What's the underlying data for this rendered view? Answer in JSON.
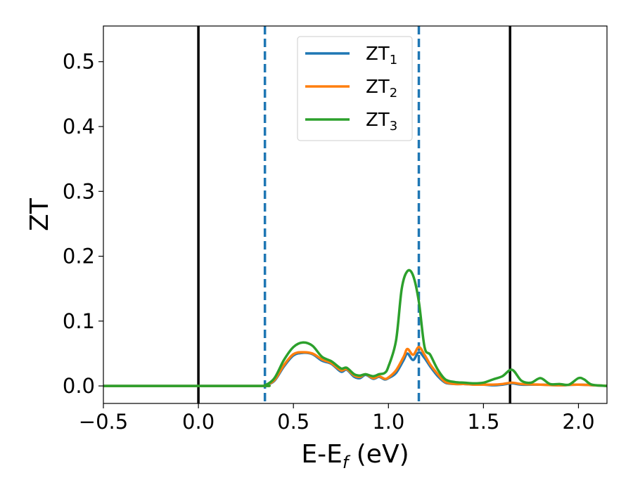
{
  "chart_data": {
    "type": "line",
    "xlabel": "E-E",
    "xlabel_sub": "f",
    "xlabel_unit": " (eV)",
    "ylabel": "ZT",
    "xlim": [
      -0.5,
      2.15
    ],
    "ylim": [
      -0.027,
      0.555
    ],
    "xticks": [
      -0.5,
      0.0,
      0.5,
      1.0,
      1.5,
      2.0
    ],
    "xtick_labels": [
      "−0.5",
      "0.0",
      "0.5",
      "1.0",
      "1.5",
      "2.0"
    ],
    "yticks": [
      0.0,
      0.1,
      0.2,
      0.3,
      0.4,
      0.5
    ],
    "ytick_labels": [
      "0.0",
      "0.1",
      "0.2",
      "0.3",
      "0.4",
      "0.5"
    ],
    "grid": false,
    "legend_position": "top-center",
    "vlines_solid": [
      0.0,
      1.64
    ],
    "vlines_dashed": [
      0.35,
      1.16
    ],
    "vline_solid_color": "#000000",
    "vline_dashed_color": "#1f77b4",
    "series": [
      {
        "name": "ZT",
        "sub": "1",
        "color": "#1f77b4",
        "x": [
          -0.5,
          0.3,
          0.35,
          0.4,
          0.45,
          0.5,
          0.55,
          0.6,
          0.65,
          0.7,
          0.75,
          0.78,
          0.82,
          0.85,
          0.88,
          0.92,
          0.95,
          0.98,
          1.0,
          1.04,
          1.08,
          1.1,
          1.13,
          1.16,
          1.19,
          1.22,
          1.26,
          1.3,
          1.35,
          1.4,
          1.45,
          1.5,
          1.55,
          1.6,
          1.65,
          1.7,
          1.8,
          1.9,
          2.0,
          2.15
        ],
        "y": [
          0.0,
          0.0,
          0.001,
          0.008,
          0.03,
          0.047,
          0.051,
          0.049,
          0.039,
          0.034,
          0.022,
          0.025,
          0.014,
          0.012,
          0.017,
          0.011,
          0.014,
          0.01,
          0.012,
          0.02,
          0.04,
          0.05,
          0.04,
          0.052,
          0.043,
          0.03,
          0.015,
          0.005,
          0.003,
          0.003,
          0.002,
          0.002,
          0.001,
          0.002,
          0.004,
          0.002,
          0.002,
          0.001,
          0.002,
          0.0
        ]
      },
      {
        "name": "ZT",
        "sub": "2",
        "color": "#ff7f0e",
        "x": [
          -0.5,
          0.3,
          0.35,
          0.4,
          0.45,
          0.5,
          0.55,
          0.6,
          0.65,
          0.7,
          0.75,
          0.78,
          0.82,
          0.85,
          0.88,
          0.92,
          0.95,
          0.98,
          1.0,
          1.04,
          1.08,
          1.1,
          1.13,
          1.16,
          1.19,
          1.22,
          1.26,
          1.3,
          1.35,
          1.4,
          1.45,
          1.5,
          1.55,
          1.6,
          1.65,
          1.7,
          1.8,
          1.9,
          2.0,
          2.15
        ],
        "y": [
          0.0,
          0.0,
          0.001,
          0.009,
          0.032,
          0.049,
          0.052,
          0.05,
          0.041,
          0.035,
          0.024,
          0.026,
          0.016,
          0.014,
          0.018,
          0.012,
          0.015,
          0.011,
          0.013,
          0.024,
          0.045,
          0.057,
          0.048,
          0.06,
          0.048,
          0.033,
          0.018,
          0.006,
          0.003,
          0.003,
          0.002,
          0.002,
          0.002,
          0.003,
          0.005,
          0.003,
          0.002,
          0.001,
          0.002,
          0.0
        ]
      },
      {
        "name": "ZT",
        "sub": "3",
        "color": "#2ca02c",
        "x": [
          -0.5,
          0.3,
          0.35,
          0.4,
          0.45,
          0.5,
          0.55,
          0.6,
          0.65,
          0.7,
          0.75,
          0.78,
          0.82,
          0.85,
          0.88,
          0.92,
          0.95,
          0.98,
          1.0,
          1.04,
          1.07,
          1.1,
          1.13,
          1.16,
          1.19,
          1.22,
          1.26,
          1.3,
          1.35,
          1.4,
          1.45,
          1.5,
          1.55,
          1.6,
          1.65,
          1.7,
          1.75,
          1.8,
          1.85,
          1.9,
          1.95,
          2.0,
          2.03,
          2.07,
          2.15
        ],
        "y": [
          0.0,
          0.0,
          0.001,
          0.012,
          0.04,
          0.06,
          0.067,
          0.062,
          0.045,
          0.038,
          0.027,
          0.028,
          0.018,
          0.016,
          0.018,
          0.015,
          0.018,
          0.02,
          0.03,
          0.07,
          0.15,
          0.177,
          0.17,
          0.13,
          0.06,
          0.048,
          0.025,
          0.01,
          0.006,
          0.005,
          0.004,
          0.005,
          0.01,
          0.015,
          0.025,
          0.008,
          0.005,
          0.012,
          0.003,
          0.003,
          0.002,
          0.012,
          0.01,
          0.002,
          0.0
        ]
      }
    ]
  }
}
